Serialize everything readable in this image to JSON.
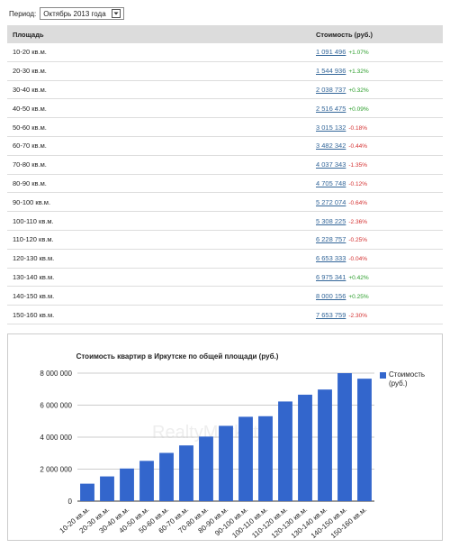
{
  "period": {
    "label": "Период:",
    "selected": "Октябрь 2013 года"
  },
  "table": {
    "headers": [
      "Площадь",
      "Стоимость (руб.)"
    ],
    "rows": [
      [
        "10-20 кв.м.",
        "1 091 496",
        "+1.07%"
      ],
      [
        "20-30 кв.м.",
        "1 544 936",
        "+1.32%"
      ],
      [
        "30-40 кв.м.",
        "2 038 737",
        "+0.32%"
      ],
      [
        "40-50 кв.м.",
        "2 516 475",
        "+0.09%"
      ],
      [
        "50-60 кв.м.",
        "3 015 132",
        "-0.18%"
      ],
      [
        "60-70 кв.м.",
        "3 482 342",
        "-0.44%"
      ],
      [
        "70-80 кв.м.",
        "4 037 343",
        "-1.35%"
      ],
      [
        "80-90 кв.м.",
        "4 705 748",
        "-0.12%"
      ],
      [
        "90-100 кв.м.",
        "5 272 074",
        "-0.64%"
      ],
      [
        "100-110 кв.м.",
        "5 308 225",
        "-2.36%"
      ],
      [
        "110-120 кв.м.",
        "6 228 757",
        "-0.25%"
      ],
      [
        "120-130 кв.м.",
        "6 653 333",
        "-0.04%"
      ],
      [
        "130-140 кв.м.",
        "6 975 341",
        "+0.42%"
      ],
      [
        "140-150 кв.м.",
        "8 000 156",
        "+0.25%"
      ],
      [
        "150-160 кв.м.",
        "7 653 759",
        "-2.30%"
      ]
    ]
  },
  "chart_data": {
    "type": "bar",
    "title": "Стоимость квартир в Иркутске по общей площади (руб.)",
    "watermark": "RealtyMarket",
    "categories": [
      "10-20 кв.м.",
      "20-30 кв.м.",
      "30-40 кв.м.",
      "40-50 кв.м.",
      "50-60 кв.м.",
      "60-70 кв.м.",
      "70-80 кв.м.",
      "80-90 кв.м.",
      "90-100 кв.м.",
      "100-110 кв.м.",
      "110-120 кв.м.",
      "120-130 кв.м.",
      "130-140 кв.м.",
      "140-150 кв.м.",
      "150-160 кв.м."
    ],
    "series": [
      {
        "name": "Стоимость (руб.)",
        "color": "#3366cc",
        "values": [
          1091496,
          1544936,
          2038737,
          2516475,
          3015132,
          3482342,
          4037343,
          4705748,
          5272074,
          5308225,
          6228757,
          6653333,
          6975341,
          8000156,
          7653759
        ]
      }
    ],
    "ylim": [
      0,
      8000000
    ],
    "yticks": [
      0,
      {
        "value": 2000000,
        "label": "2 000 000"
      },
      {
        "value": 4000000,
        "label": "4 000 000"
      },
      {
        "value": 6000000,
        "label": "6 000 000"
      },
      {
        "value": 8000000,
        "label": "8 000 000"
      }
    ],
    "grid": true,
    "legend": "right"
  }
}
